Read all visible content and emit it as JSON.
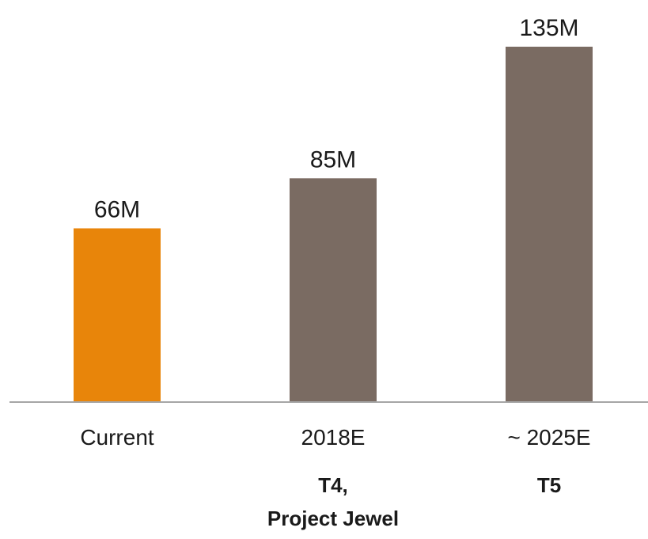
{
  "chart_data": {
    "type": "bar",
    "categories": [
      "Current",
      "2018E",
      "~ 2025E"
    ],
    "values": [
      66,
      85,
      135
    ],
    "value_labels": [
      "66M",
      "85M",
      "135M"
    ],
    "sublabels": [
      [],
      [
        "T4,",
        "Project Jewel"
      ],
      [
        "T5"
      ]
    ],
    "colors": [
      "#E8850A",
      "#7A6B62",
      "#7A6B62"
    ],
    "axis_color": "#A6A6A6",
    "ylim": [
      0,
      135
    ],
    "grid": false,
    "title": "",
    "xlabel": "",
    "ylabel": ""
  }
}
